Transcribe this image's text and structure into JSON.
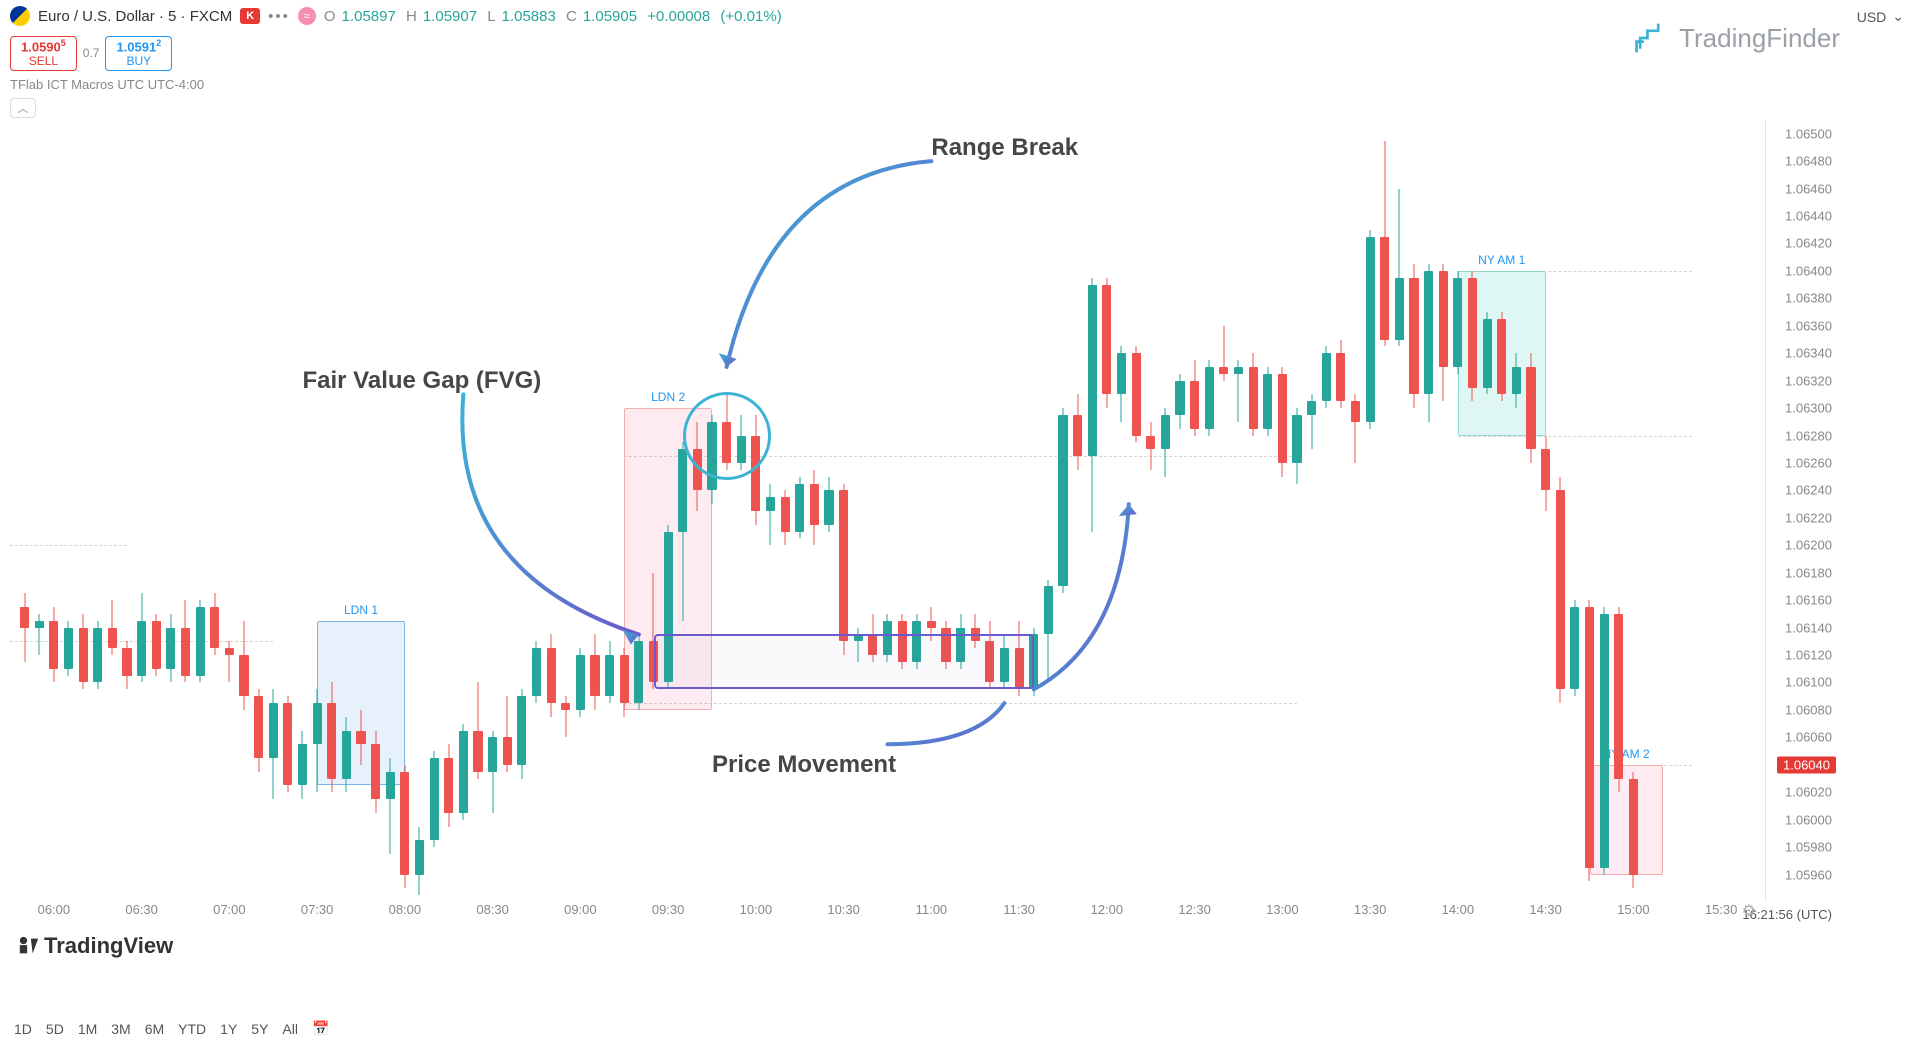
{
  "header": {
    "symbol": "Euro / U.S. Dollar · 5 · FXCM",
    "broker_badge": "K",
    "O": "1.05897",
    "H": "1.05907",
    "L": "1.05883",
    "C": "1.05905",
    "chg": "+0.00008",
    "chg_pct": "(+0.01%)"
  },
  "buysell": {
    "sell_price": "1.0590",
    "sell_sup": "5",
    "sell_lbl": "SELL",
    "spread": "0.7",
    "buy_price": "1.0591",
    "buy_sup": "2",
    "buy_lbl": "BUY"
  },
  "indicator_line": "TFlab ICT Macros UTC UTC-4:00",
  "currency_sel": "USD",
  "logo": "TradingFinder",
  "tv_logo": "TradingView",
  "clock": "16:21:56 (UTC)",
  "timeframes": [
    "1D",
    "5D",
    "1M",
    "3M",
    "6M",
    "YTD",
    "1Y",
    "5Y",
    "All"
  ],
  "price_axis": {
    "min": 1.0594,
    "max": 1.0651,
    "ticks": [
      "1.06500",
      "1.06480",
      "1.06460",
      "1.06440",
      "1.06420",
      "1.06400",
      "1.06380",
      "1.06360",
      "1.06340",
      "1.06320",
      "1.06300",
      "1.06280",
      "1.06260",
      "1.06240",
      "1.06220",
      "1.06200",
      "1.06180",
      "1.06160",
      "1.06140",
      "1.06120",
      "1.06100",
      "1.06080",
      "1.06060",
      "1.06040",
      "1.06020",
      "1.06000",
      "1.05980",
      "1.05960"
    ],
    "highlight": "1.06040"
  },
  "time_axis": {
    "min": 0,
    "max": 120,
    "ticks": [
      {
        "t": 3,
        "l": "06:00"
      },
      {
        "t": 9,
        "l": "06:30"
      },
      {
        "t": 15,
        "l": "07:00"
      },
      {
        "t": 21,
        "l": "07:30"
      },
      {
        "t": 27,
        "l": "08:00"
      },
      {
        "t": 33,
        "l": "08:30"
      },
      {
        "t": 39,
        "l": "09:00"
      },
      {
        "t": 45,
        "l": "09:30"
      },
      {
        "t": 51,
        "l": "10:00"
      },
      {
        "t": 57,
        "l": "10:30"
      },
      {
        "t": 63,
        "l": "11:00"
      },
      {
        "t": 69,
        "l": "11:30"
      },
      {
        "t": 75,
        "l": "12:00"
      },
      {
        "t": 81,
        "l": "12:30"
      },
      {
        "t": 87,
        "l": "13:00"
      },
      {
        "t": 93,
        "l": "13:30"
      },
      {
        "t": 99,
        "l": "14:00"
      },
      {
        "t": 105,
        "l": "14:30"
      },
      {
        "t": 111,
        "l": "15:00"
      },
      {
        "t": 117,
        "l": "15:30"
      }
    ]
  },
  "colors": {
    "up": "#26a69a",
    "down": "#ef5350",
    "sess_blue_fill": "rgba(120,180,240,0.18)",
    "sess_blue_border": "#7bb3e8",
    "sess_pink_fill": "rgba(244,143,177,0.18)",
    "sess_pink_border": "#f3b0b0",
    "sess_teal_fill": "rgba(128,222,210,0.25)",
    "sess_teal_border": "#8fd9cf",
    "fvg_border": "#6a5acd",
    "circle": "#3bb3d4"
  },
  "sessions": [
    {
      "name": "LDN 1",
      "t0": 21,
      "t1": 27,
      "p0": 1.06025,
      "p1": 1.06145,
      "style": "blue"
    },
    {
      "name": "LDN 2",
      "t0": 42,
      "t1": 48,
      "p0": 1.0608,
      "p1": 1.063,
      "style": "pink"
    },
    {
      "name": "NY AM 1",
      "t0": 99,
      "t1": 105,
      "p0": 1.0628,
      "p1": 1.064,
      "style": "teal"
    },
    {
      "name": "NY AM 2",
      "t0": 108,
      "t1": 113,
      "p0": 1.0596,
      "p1": 1.0604,
      "style": "pink"
    }
  ],
  "annotations": {
    "range_break": "Range Break",
    "fvg": "Fair Value Gap (FVG)",
    "price_move": "Price Movement"
  },
  "candles": [
    {
      "t": 1,
      "o": 1.06155,
      "h": 1.06165,
      "l": 1.06115,
      "c": 1.0614
    },
    {
      "t": 2,
      "o": 1.0614,
      "h": 1.0615,
      "l": 1.0612,
      "c": 1.06145
    },
    {
      "t": 3,
      "o": 1.06145,
      "h": 1.06155,
      "l": 1.061,
      "c": 1.0611
    },
    {
      "t": 4,
      "o": 1.0611,
      "h": 1.06145,
      "l": 1.06105,
      "c": 1.0614
    },
    {
      "t": 5,
      "o": 1.0614,
      "h": 1.0615,
      "l": 1.06095,
      "c": 1.061
    },
    {
      "t": 6,
      "o": 1.061,
      "h": 1.06145,
      "l": 1.06095,
      "c": 1.0614
    },
    {
      "t": 7,
      "o": 1.0614,
      "h": 1.0616,
      "l": 1.0612,
      "c": 1.06125
    },
    {
      "t": 8,
      "o": 1.06125,
      "h": 1.0613,
      "l": 1.06095,
      "c": 1.06105
    },
    {
      "t": 9,
      "o": 1.06105,
      "h": 1.06165,
      "l": 1.061,
      "c": 1.06145
    },
    {
      "t": 10,
      "o": 1.06145,
      "h": 1.0615,
      "l": 1.06105,
      "c": 1.0611
    },
    {
      "t": 11,
      "o": 1.0611,
      "h": 1.0615,
      "l": 1.061,
      "c": 1.0614
    },
    {
      "t": 12,
      "o": 1.0614,
      "h": 1.0616,
      "l": 1.061,
      "c": 1.06105
    },
    {
      "t": 13,
      "o": 1.06105,
      "h": 1.0616,
      "l": 1.061,
      "c": 1.06155
    },
    {
      "t": 14,
      "o": 1.06155,
      "h": 1.06165,
      "l": 1.0612,
      "c": 1.06125
    },
    {
      "t": 15,
      "o": 1.06125,
      "h": 1.0613,
      "l": 1.061,
      "c": 1.0612
    },
    {
      "t": 16,
      "o": 1.0612,
      "h": 1.06145,
      "l": 1.0608,
      "c": 1.0609
    },
    {
      "t": 17,
      "o": 1.0609,
      "h": 1.06095,
      "l": 1.06035,
      "c": 1.06045
    },
    {
      "t": 18,
      "o": 1.06045,
      "h": 1.06095,
      "l": 1.06015,
      "c": 1.06085
    },
    {
      "t": 19,
      "o": 1.06085,
      "h": 1.0609,
      "l": 1.0602,
      "c": 1.06025
    },
    {
      "t": 20,
      "o": 1.06025,
      "h": 1.06065,
      "l": 1.06015,
      "c": 1.06055
    },
    {
      "t": 21,
      "o": 1.06055,
      "h": 1.06095,
      "l": 1.0602,
      "c": 1.06085
    },
    {
      "t": 22,
      "o": 1.06085,
      "h": 1.061,
      "l": 1.0602,
      "c": 1.0603
    },
    {
      "t": 23,
      "o": 1.0603,
      "h": 1.06075,
      "l": 1.0602,
      "c": 1.06065
    },
    {
      "t": 24,
      "o": 1.06065,
      "h": 1.0608,
      "l": 1.0604,
      "c": 1.06055
    },
    {
      "t": 25,
      "o": 1.06055,
      "h": 1.06065,
      "l": 1.06005,
      "c": 1.06015
    },
    {
      "t": 26,
      "o": 1.06015,
      "h": 1.06045,
      "l": 1.05975,
      "c": 1.06035
    },
    {
      "t": 27,
      "o": 1.06035,
      "h": 1.0604,
      "l": 1.0595,
      "c": 1.0596
    },
    {
      "t": 28,
      "o": 1.0596,
      "h": 1.05995,
      "l": 1.05945,
      "c": 1.05985
    },
    {
      "t": 29,
      "o": 1.05985,
      "h": 1.0605,
      "l": 1.0598,
      "c": 1.06045
    },
    {
      "t": 30,
      "o": 1.06045,
      "h": 1.06055,
      "l": 1.05995,
      "c": 1.06005
    },
    {
      "t": 31,
      "o": 1.06005,
      "h": 1.0607,
      "l": 1.06,
      "c": 1.06065
    },
    {
      "t": 32,
      "o": 1.06065,
      "h": 1.061,
      "l": 1.0603,
      "c": 1.06035
    },
    {
      "t": 33,
      "o": 1.06035,
      "h": 1.06065,
      "l": 1.06005,
      "c": 1.0606
    },
    {
      "t": 34,
      "o": 1.0606,
      "h": 1.0609,
      "l": 1.06035,
      "c": 1.0604
    },
    {
      "t": 35,
      "o": 1.0604,
      "h": 1.06095,
      "l": 1.0603,
      "c": 1.0609
    },
    {
      "t": 36,
      "o": 1.0609,
      "h": 1.0613,
      "l": 1.06085,
      "c": 1.06125
    },
    {
      "t": 37,
      "o": 1.06125,
      "h": 1.06135,
      "l": 1.06075,
      "c": 1.06085
    },
    {
      "t": 38,
      "o": 1.06085,
      "h": 1.0609,
      "l": 1.0606,
      "c": 1.0608
    },
    {
      "t": 39,
      "o": 1.0608,
      "h": 1.06125,
      "l": 1.06075,
      "c": 1.0612
    },
    {
      "t": 40,
      "o": 1.0612,
      "h": 1.06135,
      "l": 1.0608,
      "c": 1.0609
    },
    {
      "t": 41,
      "o": 1.0609,
      "h": 1.0613,
      "l": 1.06085,
      "c": 1.0612
    },
    {
      "t": 42,
      "o": 1.0612,
      "h": 1.06125,
      "l": 1.06075,
      "c": 1.06085
    },
    {
      "t": 43,
      "o": 1.06085,
      "h": 1.06135,
      "l": 1.0608,
      "c": 1.0613
    },
    {
      "t": 44,
      "o": 1.0613,
      "h": 1.0618,
      "l": 1.06095,
      "c": 1.061
    },
    {
      "t": 45,
      "o": 1.061,
      "h": 1.06215,
      "l": 1.06095,
      "c": 1.0621
    },
    {
      "t": 46,
      "o": 1.0621,
      "h": 1.06275,
      "l": 1.06145,
      "c": 1.0627
    },
    {
      "t": 47,
      "o": 1.0627,
      "h": 1.0629,
      "l": 1.06225,
      "c": 1.0624
    },
    {
      "t": 48,
      "o": 1.0624,
      "h": 1.06295,
      "l": 1.0623,
      "c": 1.0629
    },
    {
      "t": 49,
      "o": 1.0629,
      "h": 1.0631,
      "l": 1.06255,
      "c": 1.0626
    },
    {
      "t": 50,
      "o": 1.0626,
      "h": 1.06295,
      "l": 1.06255,
      "c": 1.0628
    },
    {
      "t": 51,
      "o": 1.0628,
      "h": 1.06295,
      "l": 1.06215,
      "c": 1.06225
    },
    {
      "t": 52,
      "o": 1.06225,
      "h": 1.06245,
      "l": 1.062,
      "c": 1.06235
    },
    {
      "t": 53,
      "o": 1.06235,
      "h": 1.0624,
      "l": 1.062,
      "c": 1.0621
    },
    {
      "t": 54,
      "o": 1.0621,
      "h": 1.0625,
      "l": 1.06205,
      "c": 1.06245
    },
    {
      "t": 55,
      "o": 1.06245,
      "h": 1.06255,
      "l": 1.062,
      "c": 1.06215
    },
    {
      "t": 56,
      "o": 1.06215,
      "h": 1.0625,
      "l": 1.0621,
      "c": 1.0624
    },
    {
      "t": 57,
      "o": 1.0624,
      "h": 1.06245,
      "l": 1.0612,
      "c": 1.0613
    },
    {
      "t": 58,
      "o": 1.0613,
      "h": 1.0614,
      "l": 1.06115,
      "c": 1.06135
    },
    {
      "t": 59,
      "o": 1.06135,
      "h": 1.0615,
      "l": 1.06115,
      "c": 1.0612
    },
    {
      "t": 60,
      "o": 1.0612,
      "h": 1.0615,
      "l": 1.06115,
      "c": 1.06145
    },
    {
      "t": 61,
      "o": 1.06145,
      "h": 1.0615,
      "l": 1.0611,
      "c": 1.06115
    },
    {
      "t": 62,
      "o": 1.06115,
      "h": 1.0615,
      "l": 1.0611,
      "c": 1.06145
    },
    {
      "t": 63,
      "o": 1.06145,
      "h": 1.06155,
      "l": 1.0613,
      "c": 1.0614
    },
    {
      "t": 64,
      "o": 1.0614,
      "h": 1.06145,
      "l": 1.0611,
      "c": 1.06115
    },
    {
      "t": 65,
      "o": 1.06115,
      "h": 1.0615,
      "l": 1.0611,
      "c": 1.0614
    },
    {
      "t": 66,
      "o": 1.0614,
      "h": 1.0615,
      "l": 1.06125,
      "c": 1.0613
    },
    {
      "t": 67,
      "o": 1.0613,
      "h": 1.06145,
      "l": 1.06095,
      "c": 1.061
    },
    {
      "t": 68,
      "o": 1.061,
      "h": 1.06135,
      "l": 1.06095,
      "c": 1.06125
    },
    {
      "t": 69,
      "o": 1.06125,
      "h": 1.06145,
      "l": 1.0609,
      "c": 1.06095
    },
    {
      "t": 70,
      "o": 1.06095,
      "h": 1.0614,
      "l": 1.0609,
      "c": 1.06135
    },
    {
      "t": 71,
      "o": 1.06135,
      "h": 1.06175,
      "l": 1.061,
      "c": 1.0617
    },
    {
      "t": 72,
      "o": 1.0617,
      "h": 1.063,
      "l": 1.06165,
      "c": 1.06295
    },
    {
      "t": 73,
      "o": 1.06295,
      "h": 1.0631,
      "l": 1.06255,
      "c": 1.06265
    },
    {
      "t": 74,
      "o": 1.06265,
      "h": 1.06395,
      "l": 1.0621,
      "c": 1.0639
    },
    {
      "t": 75,
      "o": 1.0639,
      "h": 1.06395,
      "l": 1.063,
      "c": 1.0631
    },
    {
      "t": 76,
      "o": 1.0631,
      "h": 1.06345,
      "l": 1.0629,
      "c": 1.0634
    },
    {
      "t": 77,
      "o": 1.0634,
      "h": 1.06345,
      "l": 1.06275,
      "c": 1.0628
    },
    {
      "t": 78,
      "o": 1.0628,
      "h": 1.0629,
      "l": 1.06255,
      "c": 1.0627
    },
    {
      "t": 79,
      "o": 1.0627,
      "h": 1.063,
      "l": 1.0625,
      "c": 1.06295
    },
    {
      "t": 80,
      "o": 1.06295,
      "h": 1.06325,
      "l": 1.06285,
      "c": 1.0632
    },
    {
      "t": 81,
      "o": 1.0632,
      "h": 1.06335,
      "l": 1.0628,
      "c": 1.06285
    },
    {
      "t": 82,
      "o": 1.06285,
      "h": 1.06335,
      "l": 1.0628,
      "c": 1.0633
    },
    {
      "t": 83,
      "o": 1.0633,
      "h": 1.0636,
      "l": 1.0632,
      "c": 1.06325
    },
    {
      "t": 84,
      "o": 1.06325,
      "h": 1.06335,
      "l": 1.0629,
      "c": 1.0633
    },
    {
      "t": 85,
      "o": 1.0633,
      "h": 1.0634,
      "l": 1.0628,
      "c": 1.06285
    },
    {
      "t": 86,
      "o": 1.06285,
      "h": 1.0633,
      "l": 1.0628,
      "c": 1.06325
    },
    {
      "t": 87,
      "o": 1.06325,
      "h": 1.0633,
      "l": 1.0625,
      "c": 1.0626
    },
    {
      "t": 88,
      "o": 1.0626,
      "h": 1.063,
      "l": 1.06245,
      "c": 1.06295
    },
    {
      "t": 89,
      "o": 1.06295,
      "h": 1.0631,
      "l": 1.0627,
      "c": 1.06305
    },
    {
      "t": 90,
      "o": 1.06305,
      "h": 1.06345,
      "l": 1.063,
      "c": 1.0634
    },
    {
      "t": 91,
      "o": 1.0634,
      "h": 1.0635,
      "l": 1.063,
      "c": 1.06305
    },
    {
      "t": 92,
      "o": 1.06305,
      "h": 1.0631,
      "l": 1.0626,
      "c": 1.0629
    },
    {
      "t": 93,
      "o": 1.0629,
      "h": 1.0643,
      "l": 1.06285,
      "c": 1.06425
    },
    {
      "t": 94,
      "o": 1.06425,
      "h": 1.06495,
      "l": 1.06345,
      "c": 1.0635
    },
    {
      "t": 95,
      "o": 1.0635,
      "h": 1.0646,
      "l": 1.06345,
      "c": 1.06395
    },
    {
      "t": 96,
      "o": 1.06395,
      "h": 1.06405,
      "l": 1.063,
      "c": 1.0631
    },
    {
      "t": 97,
      "o": 1.0631,
      "h": 1.06405,
      "l": 1.0629,
      "c": 1.064
    },
    {
      "t": 98,
      "o": 1.064,
      "h": 1.06405,
      "l": 1.06305,
      "c": 1.0633
    },
    {
      "t": 99,
      "o": 1.0633,
      "h": 1.064,
      "l": 1.06325,
      "c": 1.06395
    },
    {
      "t": 100,
      "o": 1.06395,
      "h": 1.064,
      "l": 1.06305,
      "c": 1.06315
    },
    {
      "t": 101,
      "o": 1.06315,
      "h": 1.0637,
      "l": 1.0631,
      "c": 1.06365
    },
    {
      "t": 102,
      "o": 1.06365,
      "h": 1.0637,
      "l": 1.06305,
      "c": 1.0631
    },
    {
      "t": 103,
      "o": 1.0631,
      "h": 1.0634,
      "l": 1.063,
      "c": 1.0633
    },
    {
      "t": 104,
      "o": 1.0633,
      "h": 1.0634,
      "l": 1.0626,
      "c": 1.0627
    },
    {
      "t": 105,
      "o": 1.0627,
      "h": 1.0628,
      "l": 1.06225,
      "c": 1.0624
    },
    {
      "t": 106,
      "o": 1.0624,
      "h": 1.0625,
      "l": 1.06085,
      "c": 1.06095
    },
    {
      "t": 107,
      "o": 1.06095,
      "h": 1.0616,
      "l": 1.0609,
      "c": 1.06155
    },
    {
      "t": 108,
      "o": 1.06155,
      "h": 1.0616,
      "l": 1.05955,
      "c": 1.05965
    },
    {
      "t": 109,
      "o": 1.05965,
      "h": 1.06155,
      "l": 1.0596,
      "c": 1.0615
    },
    {
      "t": 110,
      "o": 1.0615,
      "h": 1.06155,
      "l": 1.0602,
      "c": 1.0603
    },
    {
      "t": 111,
      "o": 1.0603,
      "h": 1.06035,
      "l": 1.0595,
      "c": 1.0596
    }
  ]
}
